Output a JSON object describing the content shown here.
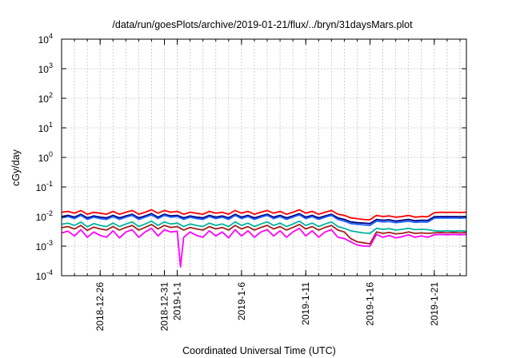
{
  "chart_data": {
    "type": "line",
    "title": "/data/run/goesPlots/archive/2019-01-21/flux/../bryn/31daysMars.plot",
    "xlabel": "Coordinated Universal Time (UTC)",
    "ylabel": "cGy/day",
    "yscale": "log",
    "ylim": [
      0.0001,
      10000
    ],
    "xlim": [
      0,
      31.5
    ],
    "grid": true,
    "yticks": [
      {
        "base": "10",
        "exp": "-4",
        "value": 0.0001
      },
      {
        "base": "10",
        "exp": "-3",
        "value": 0.001
      },
      {
        "base": "10",
        "exp": "-2",
        "value": 0.01
      },
      {
        "base": "10",
        "exp": "-1",
        "value": 0.1
      },
      {
        "base": "10",
        "exp": "0",
        "value": 1
      },
      {
        "base": "10",
        "exp": "1",
        "value": 10
      },
      {
        "base": "10",
        "exp": "2",
        "value": 100
      },
      {
        "base": "10",
        "exp": "3",
        "value": 1000
      },
      {
        "base": "10",
        "exp": "4",
        "value": 10000
      }
    ],
    "xticks": [
      {
        "label": "2018-12-26",
        "day": 3
      },
      {
        "label": "2018-12-31",
        "day": 8
      },
      {
        "label": "2019-1-1",
        "day": 9
      },
      {
        "label": "2019-1-6",
        "day": 14
      },
      {
        "label": "2019-1-11",
        "day": 19
      },
      {
        "label": "2019-1-16",
        "day": 24
      },
      {
        "label": "2019-1-21",
        "day": 29
      }
    ],
    "series": [
      {
        "name": "red",
        "color": "#ff0000",
        "x": [
          0,
          0.5,
          1,
          1.5,
          2,
          2.5,
          3,
          3.5,
          4,
          4.5,
          5,
          5.5,
          6,
          6.5,
          7,
          7.5,
          8,
          8.5,
          9,
          9.5,
          10,
          10.5,
          11,
          11.5,
          12,
          12.5,
          13,
          13.5,
          14,
          14.5,
          15,
          15.5,
          16,
          16.5,
          17,
          17.5,
          18,
          18.5,
          19,
          19.5,
          20,
          20.5,
          21,
          21.5,
          22,
          22.5,
          23,
          23.5,
          24,
          24.5,
          25,
          25.5,
          26,
          26.5,
          27,
          27.5,
          28,
          28.5,
          29,
          29.5,
          30,
          30.5,
          31,
          31.5
        ],
        "values": [
          0.014,
          0.015,
          0.013,
          0.016,
          0.012,
          0.014,
          0.013,
          0.012,
          0.015,
          0.012,
          0.014,
          0.016,
          0.012,
          0.014,
          0.017,
          0.013,
          0.016,
          0.014,
          0.015,
          0.012,
          0.014,
          0.013,
          0.012,
          0.015,
          0.013,
          0.014,
          0.012,
          0.016,
          0.013,
          0.015,
          0.012,
          0.014,
          0.016,
          0.013,
          0.015,
          0.012,
          0.014,
          0.017,
          0.013,
          0.015,
          0.012,
          0.014,
          0.016,
          0.012,
          0.011,
          0.009,
          0.0085,
          0.008,
          0.0078,
          0.011,
          0.01,
          0.0105,
          0.0095,
          0.01,
          0.011,
          0.0095,
          0.01,
          0.0098,
          0.0135,
          0.014,
          0.0138,
          0.014,
          0.0137,
          0.014
        ]
      },
      {
        "name": "navy",
        "color": "#000080",
        "x": [
          0,
          0.5,
          1,
          1.5,
          2,
          2.5,
          3,
          3.5,
          4,
          4.5,
          5,
          5.5,
          6,
          6.5,
          7,
          7.5,
          8,
          8.5,
          9,
          9.5,
          10,
          10.5,
          11,
          11.5,
          12,
          12.5,
          13,
          13.5,
          14,
          14.5,
          15,
          15.5,
          16,
          16.5,
          17,
          17.5,
          18,
          18.5,
          19,
          19.5,
          20,
          20.5,
          21,
          21.5,
          22,
          22.5,
          23,
          23.5,
          24,
          24.5,
          25,
          25.5,
          26,
          26.5,
          27,
          27.5,
          28,
          28.5,
          29,
          29.5,
          30,
          30.5,
          31,
          31.5
        ],
        "values": [
          0.01,
          0.011,
          0.0095,
          0.012,
          0.009,
          0.0105,
          0.0095,
          0.009,
          0.011,
          0.009,
          0.0105,
          0.012,
          0.009,
          0.0105,
          0.0125,
          0.0095,
          0.012,
          0.0105,
          0.011,
          0.009,
          0.0105,
          0.0095,
          0.009,
          0.011,
          0.0095,
          0.0105,
          0.009,
          0.012,
          0.0095,
          0.011,
          0.009,
          0.0105,
          0.012,
          0.0095,
          0.011,
          0.009,
          0.0105,
          0.0125,
          0.0095,
          0.011,
          0.009,
          0.0105,
          0.012,
          0.009,
          0.008,
          0.0066,
          0.0062,
          0.006,
          0.0058,
          0.008,
          0.0075,
          0.0078,
          0.007,
          0.0075,
          0.008,
          0.0072,
          0.0075,
          0.0074,
          0.0098,
          0.01,
          0.0099,
          0.01,
          0.0098,
          0.01
        ]
      },
      {
        "name": "blue",
        "color": "#1e64ff",
        "x": [
          0,
          0.5,
          1,
          1.5,
          2,
          2.5,
          3,
          3.5,
          4,
          4.5,
          5,
          5.5,
          6,
          6.5,
          7,
          7.5,
          8,
          8.5,
          9,
          9.5,
          10,
          10.5,
          11,
          11.5,
          12,
          12.5,
          13,
          13.5,
          14,
          14.5,
          15,
          15.5,
          16,
          16.5,
          17,
          17.5,
          18,
          18.5,
          19,
          19.5,
          20,
          20.5,
          21,
          21.5,
          22,
          22.5,
          23,
          23.5,
          24,
          24.5,
          25,
          25.5,
          26,
          26.5,
          27,
          27.5,
          28,
          28.5,
          29,
          29.5,
          30,
          30.5,
          31,
          31.5
        ],
        "values": [
          0.009,
          0.01,
          0.0085,
          0.011,
          0.008,
          0.0095,
          0.0085,
          0.008,
          0.01,
          0.008,
          0.0095,
          0.011,
          0.008,
          0.0095,
          0.0115,
          0.0085,
          0.011,
          0.0095,
          0.01,
          0.008,
          0.0095,
          0.0085,
          0.008,
          0.01,
          0.0085,
          0.0095,
          0.008,
          0.011,
          0.0085,
          0.01,
          0.008,
          0.0095,
          0.011,
          0.0085,
          0.01,
          0.008,
          0.0095,
          0.0115,
          0.0085,
          0.01,
          0.008,
          0.0095,
          0.011,
          0.008,
          0.007,
          0.0058,
          0.0055,
          0.0052,
          0.005,
          0.007,
          0.0066,
          0.0068,
          0.0062,
          0.0066,
          0.007,
          0.0064,
          0.0066,
          0.0065,
          0.0088,
          0.009,
          0.0089,
          0.009,
          0.0088,
          0.009
        ]
      },
      {
        "name": "teal",
        "color": "#00b4a0",
        "x": [
          0,
          0.5,
          1,
          1.5,
          2,
          2.5,
          3,
          3.5,
          4,
          4.5,
          5,
          5.5,
          6,
          6.5,
          7,
          7.5,
          8,
          8.5,
          9,
          9.5,
          10,
          10.5,
          11,
          11.5,
          12,
          12.5,
          13,
          13.5,
          14,
          14.5,
          15,
          15.5,
          16,
          16.5,
          17,
          17.5,
          18,
          18.5,
          19,
          19.5,
          20,
          20.5,
          21,
          21.5,
          22,
          22.5,
          23,
          23.5,
          24,
          24.5,
          25,
          25.5,
          26,
          26.5,
          27,
          27.5,
          28,
          28.5,
          29,
          29.5,
          30,
          30.5,
          31,
          31.5
        ],
        "values": [
          0.0055,
          0.006,
          0.005,
          0.0065,
          0.0045,
          0.0058,
          0.005,
          0.0046,
          0.006,
          0.0046,
          0.0056,
          0.0066,
          0.0046,
          0.0056,
          0.007,
          0.005,
          0.0066,
          0.0056,
          0.006,
          0.0046,
          0.0056,
          0.005,
          0.0046,
          0.006,
          0.005,
          0.0056,
          0.0046,
          0.0066,
          0.005,
          0.006,
          0.0046,
          0.0056,
          0.0066,
          0.005,
          0.006,
          0.0046,
          0.0056,
          0.007,
          0.005,
          0.006,
          0.0046,
          0.0056,
          0.0066,
          0.0046,
          0.004,
          0.0033,
          0.003,
          0.0028,
          0.0027,
          0.004,
          0.0037,
          0.0039,
          0.0035,
          0.0037,
          0.004,
          0.0036,
          0.0037,
          0.0036,
          0.0033,
          0.0032,
          0.0033,
          0.0032,
          0.0033,
          0.0032
        ]
      },
      {
        "name": "darkred",
        "color": "#a01e1e",
        "x": [
          0,
          0.5,
          1,
          1.5,
          2,
          2.5,
          3,
          3.5,
          4,
          4.5,
          5,
          5.5,
          6,
          6.5,
          7,
          7.5,
          8,
          8.5,
          9,
          9.5,
          10,
          10.5,
          11,
          11.5,
          12,
          12.5,
          13,
          13.5,
          14,
          14.5,
          15,
          15.5,
          16,
          16.5,
          17,
          17.5,
          18,
          18.5,
          19,
          19.5,
          20,
          20.5,
          21,
          21.5,
          22,
          22.5,
          23,
          23.5,
          24,
          24.5,
          25,
          25.5,
          26,
          26.5,
          27,
          27.5,
          28,
          28.5,
          29,
          29.5,
          30,
          30.5,
          31,
          31.5
        ],
        "values": [
          0.0042,
          0.0046,
          0.0038,
          0.005,
          0.0034,
          0.0044,
          0.0038,
          0.0035,
          0.0046,
          0.0035,
          0.0043,
          0.005,
          0.0035,
          0.0043,
          0.0054,
          0.0038,
          0.005,
          0.0043,
          0.0046,
          0.0035,
          0.0043,
          0.0038,
          0.0035,
          0.0046,
          0.0038,
          0.0043,
          0.0035,
          0.005,
          0.0038,
          0.0046,
          0.0035,
          0.0043,
          0.005,
          0.0038,
          0.0046,
          0.0035,
          0.0043,
          0.0054,
          0.0038,
          0.0046,
          0.0035,
          0.0043,
          0.005,
          0.0035,
          0.003,
          0.0018,
          0.0014,
          0.0013,
          0.0012,
          0.003,
          0.0027,
          0.0029,
          0.0026,
          0.0027,
          0.003,
          0.0027,
          0.0028,
          0.0027,
          0.0028,
          0.0029,
          0.0028,
          0.0029,
          0.0028,
          0.0029
        ]
      },
      {
        "name": "magenta",
        "color": "#ff00ff",
        "x": [
          0,
          0.5,
          1,
          1.5,
          2,
          2.5,
          3,
          3.5,
          4,
          4.5,
          5,
          5.5,
          6,
          6.5,
          7,
          7.5,
          8,
          8.5,
          9,
          9.25,
          9.5,
          10,
          10.5,
          11,
          11.5,
          12,
          12.5,
          13,
          13.5,
          14,
          14.5,
          15,
          15.5,
          16,
          16.5,
          17,
          17.5,
          18,
          18.5,
          19,
          19.5,
          20,
          20.5,
          21,
          21.5,
          22,
          22.5,
          23,
          23.5,
          24,
          24.5,
          25,
          25.5,
          26,
          26.5,
          27,
          27.5,
          28,
          28.5,
          29,
          29.5,
          30,
          30.5,
          31,
          31.5
        ],
        "values": [
          0.0028,
          0.0032,
          0.0022,
          0.0036,
          0.002,
          0.003,
          0.0023,
          0.002,
          0.0033,
          0.0019,
          0.003,
          0.0036,
          0.002,
          0.003,
          0.004,
          0.0022,
          0.0036,
          0.003,
          0.0032,
          0.0002,
          0.002,
          0.003,
          0.0023,
          0.002,
          0.0033,
          0.0022,
          0.003,
          0.0019,
          0.0036,
          0.0022,
          0.0033,
          0.002,
          0.003,
          0.0036,
          0.0022,
          0.0033,
          0.002,
          0.003,
          0.004,
          0.0022,
          0.0033,
          0.002,
          0.003,
          0.0036,
          0.002,
          0.0018,
          0.0014,
          0.0011,
          0.001,
          0.001,
          0.0025,
          0.002,
          0.0023,
          0.0019,
          0.0021,
          0.0024,
          0.002,
          0.0022,
          0.002,
          0.0024,
          0.0025,
          0.0024,
          0.0025,
          0.0024,
          0.0025
        ]
      }
    ]
  }
}
